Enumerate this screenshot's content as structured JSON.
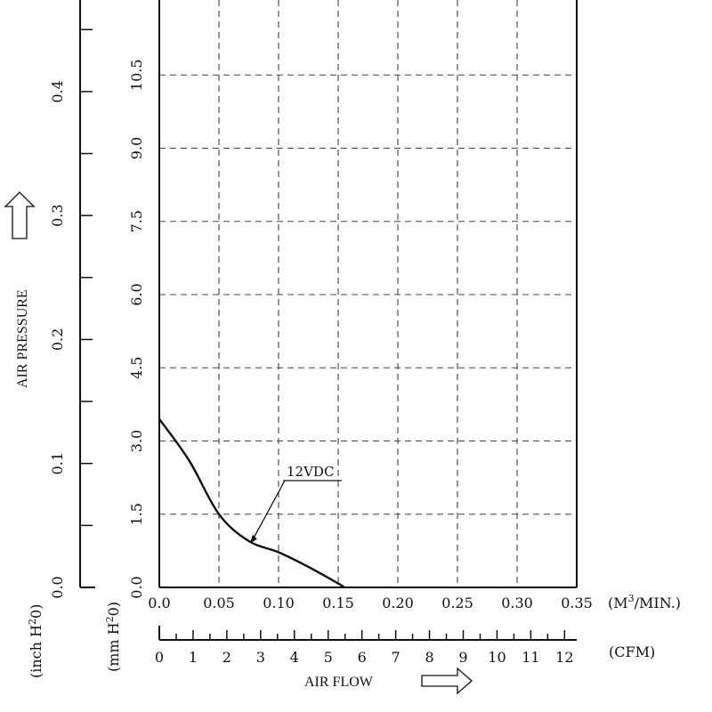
{
  "chart_data": {
    "type": "line",
    "x_primary": {
      "ticks": [
        "0.0",
        "0.05",
        "0.10",
        "0.15",
        "0.20",
        "0.25",
        "0.30",
        "0.35"
      ],
      "values": [
        0,
        0.05,
        0.1,
        0.15,
        0.2,
        0.25,
        0.3,
        0.35
      ],
      "unit_prefix": "(M",
      "unit_sup": "3",
      "unit_suffix": "/MIN.)",
      "xlim": [
        0,
        0.35
      ]
    },
    "x_secondary": {
      "ticks": [
        "0",
        "1",
        "2",
        "3",
        "4",
        "5",
        "6",
        "7",
        "8",
        "9",
        "10",
        "11",
        "12"
      ],
      "values": [
        0,
        1,
        2,
        3,
        4,
        5,
        6,
        7,
        8,
        9,
        10,
        11,
        12
      ],
      "unit": "(CFM)"
    },
    "xlabel": "AIR  FLOW",
    "y_mm": {
      "ticks": [
        "0.0",
        "1.5",
        "3.0",
        "4.5",
        "6.0",
        "7.5",
        "9.0",
        "10.5"
      ],
      "values": [
        0,
        1.5,
        3.0,
        4.5,
        6.0,
        7.5,
        9.0,
        10.5
      ],
      "unit_prefix": "(mm  H",
      "unit_sup": "2",
      "unit_suffix": "0)",
      "ylim": [
        0,
        12
      ]
    },
    "y_inch": {
      "ticks": [
        "0.0",
        "0.1",
        "0.2",
        "0.3",
        "0.4"
      ],
      "values": [
        0,
        0.1,
        0.2,
        0.3,
        0.4
      ],
      "unit_prefix": "(inch  H",
      "unit_sup": "2",
      "unit_suffix": "0)"
    },
    "ylabel": "AIR  PRESSURE",
    "grid": true,
    "series": [
      {
        "name": "12VDC",
        "x": [
          0.0,
          0.025,
          0.05,
          0.075,
          0.1,
          0.125,
          0.15,
          0.155
        ],
        "y": [
          3.45,
          2.6,
          1.5,
          0.95,
          0.72,
          0.42,
          0.08,
          0.0
        ]
      }
    ],
    "annotation_point": [
      0.076,
      0.9
    ]
  }
}
